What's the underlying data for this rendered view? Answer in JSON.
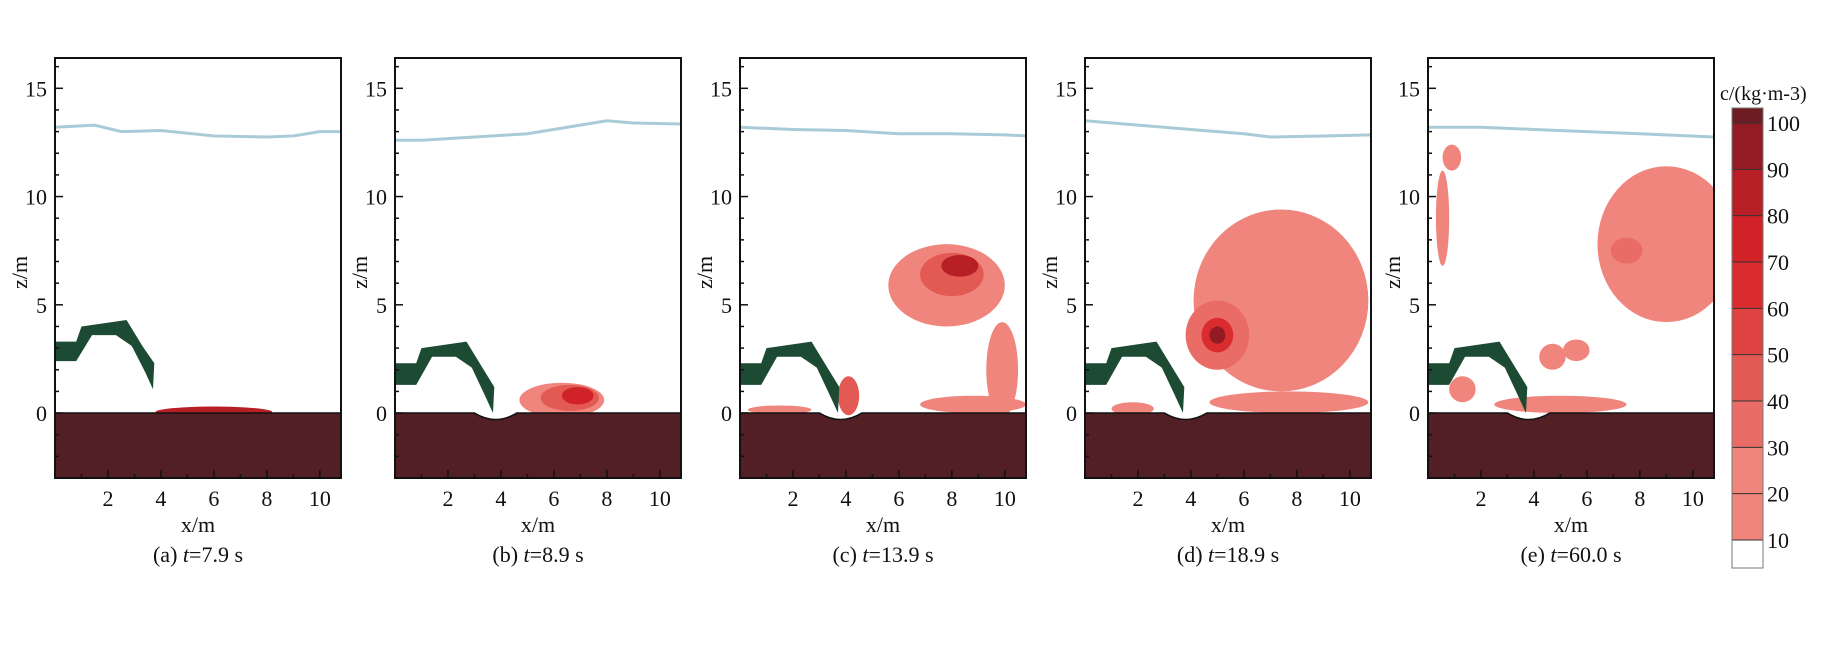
{
  "chart_data": {
    "type": "heatmap",
    "title": "",
    "xlabel": "x/m",
    "ylabel": "z/m",
    "xlim": [
      0,
      10.8
    ],
    "ylim": [
      -3,
      16.4
    ],
    "xticks": [
      2,
      4,
      6,
      8,
      10
    ],
    "yticks": [
      0,
      5,
      10,
      15
    ],
    "colorbar": {
      "label": "c/(kg·m-3)",
      "label_parts": {
        "var": "c",
        "unit": "/(kg·m",
        "exp": "-3",
        "close": ")"
      },
      "levels": [
        10,
        20,
        30,
        40,
        50,
        60,
        70,
        80,
        90,
        100
      ],
      "colors": [
        "#ffffff",
        "#ef857d",
        "#e96d66",
        "#e35a55",
        "#de4241",
        "#da2c2e",
        "#d02227",
        "#b81e25",
        "#931b23",
        "#6e1b22"
      ],
      "bed_color": "#521f25"
    },
    "structure_color": "#1c4a33",
    "surface_color": "#a9cbd8",
    "panels": [
      {
        "caption": {
          "prefix": "(a) ",
          "var": "t",
          "value": "=7.9 s"
        },
        "surface": [
          [
            0,
            13.2
          ],
          [
            1.5,
            13.3
          ],
          [
            2.5,
            13.0
          ],
          [
            4,
            13.05
          ],
          [
            6,
            12.8
          ],
          [
            8,
            12.75
          ],
          [
            9,
            12.8
          ],
          [
            10,
            13.0
          ],
          [
            10.8,
            13.0
          ]
        ],
        "structure": [
          [
            0,
            3.3
          ],
          [
            0.8,
            3.3
          ],
          [
            1.0,
            4.0
          ],
          [
            2.7,
            4.3
          ],
          [
            3.3,
            3.1
          ],
          [
            3.75,
            2.3
          ],
          [
            3.7,
            1.1
          ],
          [
            3.4,
            1.9
          ],
          [
            2.9,
            3.1
          ],
          [
            2.3,
            3.6
          ],
          [
            1.4,
            3.6
          ],
          [
            0.8,
            2.4
          ],
          [
            0,
            2.4
          ]
        ],
        "bed_dip": 0,
        "plumes": [
          [
            6,
            0.05,
            2.2,
            0.25,
            80
          ]
        ]
      },
      {
        "caption": {
          "prefix": "(b) ",
          "var": "t",
          "value": "=8.9 s"
        },
        "surface": [
          [
            0,
            12.6
          ],
          [
            1,
            12.6
          ],
          [
            3,
            12.75
          ],
          [
            5,
            12.9
          ],
          [
            6.5,
            13.2
          ],
          [
            8,
            13.5
          ],
          [
            9,
            13.4
          ],
          [
            10.8,
            13.35
          ]
        ],
        "structure": [
          [
            0,
            2.3
          ],
          [
            0.8,
            2.3
          ],
          [
            1.0,
            3.0
          ],
          [
            2.7,
            3.3
          ],
          [
            3.3,
            2.1
          ],
          [
            3.75,
            1.2
          ],
          [
            3.7,
            0.0
          ],
          [
            3.4,
            0.8
          ],
          [
            2.9,
            2.1
          ],
          [
            2.3,
            2.6
          ],
          [
            1.4,
            2.6
          ],
          [
            0.8,
            1.3
          ],
          [
            0,
            1.3
          ]
        ],
        "bed_dip": 0.3,
        "plumes": [
          [
            6.3,
            0.6,
            1.6,
            0.8,
            20
          ],
          [
            6.6,
            0.7,
            1.1,
            0.6,
            40
          ],
          [
            6.9,
            0.8,
            0.6,
            0.4,
            70
          ]
        ]
      },
      {
        "caption": {
          "prefix": "(c) ",
          "var": "t",
          "value": "=13.9 s"
        },
        "surface": [
          [
            0,
            13.2
          ],
          [
            2,
            13.1
          ],
          [
            4,
            13.05
          ],
          [
            6,
            12.9
          ],
          [
            8,
            12.9
          ],
          [
            10,
            12.85
          ],
          [
            10.8,
            12.8
          ]
        ],
        "structure": [
          [
            0,
            2.3
          ],
          [
            0.8,
            2.3
          ],
          [
            1.0,
            3.0
          ],
          [
            2.7,
            3.3
          ],
          [
            3.3,
            2.1
          ],
          [
            3.75,
            1.2
          ],
          [
            3.7,
            0.0
          ],
          [
            3.4,
            0.8
          ],
          [
            2.9,
            2.1
          ],
          [
            2.3,
            2.6
          ],
          [
            1.4,
            2.6
          ],
          [
            0.8,
            1.3
          ],
          [
            0,
            1.3
          ]
        ],
        "bed_dip": 0.3,
        "plumes": [
          [
            7.8,
            5.9,
            2.2,
            1.9,
            20
          ],
          [
            9.9,
            2.0,
            0.6,
            2.2,
            20
          ],
          [
            8.8,
            0.4,
            2.0,
            0.4,
            20
          ],
          [
            4.1,
            0.8,
            0.4,
            0.9,
            40
          ],
          [
            8.0,
            6.4,
            1.2,
            1.0,
            40
          ],
          [
            8.3,
            6.8,
            0.7,
            0.5,
            80
          ],
          [
            1.5,
            0.15,
            1.2,
            0.2,
            20
          ]
        ]
      },
      {
        "caption": {
          "prefix": "(d) ",
          "var": "t",
          "value": "=18.9 s"
        },
        "surface": [
          [
            0,
            13.5
          ],
          [
            2,
            13.3
          ],
          [
            4,
            13.1
          ],
          [
            6,
            12.9
          ],
          [
            7,
            12.75
          ],
          [
            9,
            12.8
          ],
          [
            10.8,
            12.85
          ]
        ],
        "structure": [
          [
            0,
            2.3
          ],
          [
            0.8,
            2.3
          ],
          [
            1.0,
            3.0
          ],
          [
            2.7,
            3.3
          ],
          [
            3.3,
            2.1
          ],
          [
            3.75,
            1.2
          ],
          [
            3.7,
            0.0
          ],
          [
            3.4,
            0.8
          ],
          [
            2.9,
            2.1
          ],
          [
            2.3,
            2.6
          ],
          [
            1.4,
            2.6
          ],
          [
            0.8,
            1.3
          ],
          [
            0,
            1.3
          ]
        ],
        "bed_dip": 0.3,
        "plumes": [
          [
            7.4,
            5.2,
            3.3,
            4.2,
            20
          ],
          [
            5.0,
            3.6,
            1.2,
            1.6,
            30
          ],
          [
            5.0,
            3.6,
            0.6,
            0.8,
            60
          ],
          [
            5.0,
            3.6,
            0.3,
            0.4,
            90
          ],
          [
            7.7,
            0.5,
            3.0,
            0.5,
            20
          ],
          [
            1.8,
            0.2,
            0.8,
            0.3,
            20
          ]
        ]
      },
      {
        "caption": {
          "prefix": "(e) ",
          "var": "t",
          "value": "=60.0 s"
        },
        "surface": [
          [
            0,
            13.2
          ],
          [
            2,
            13.2
          ],
          [
            4,
            13.1
          ],
          [
            6,
            13.0
          ],
          [
            8,
            12.9
          ],
          [
            10.8,
            12.75
          ]
        ],
        "structure": [
          [
            0,
            2.3
          ],
          [
            0.8,
            2.3
          ],
          [
            1.0,
            3.0
          ],
          [
            2.7,
            3.3
          ],
          [
            3.3,
            2.1
          ],
          [
            3.75,
            1.2
          ],
          [
            3.7,
            0.0
          ],
          [
            3.4,
            0.8
          ],
          [
            2.9,
            2.1
          ],
          [
            2.3,
            2.6
          ],
          [
            1.4,
            2.6
          ],
          [
            0.8,
            1.3
          ],
          [
            0,
            1.3
          ]
        ],
        "bed_dip": 0.3,
        "plumes": [
          [
            9.0,
            7.8,
            2.6,
            3.6,
            20
          ],
          [
            7.5,
            7.5,
            0.6,
            0.6,
            30
          ],
          [
            0.9,
            11.8,
            0.35,
            0.6,
            20
          ],
          [
            0.55,
            9.0,
            0.25,
            2.2,
            20
          ],
          [
            1.3,
            1.1,
            0.5,
            0.6,
            20
          ],
          [
            4.7,
            2.6,
            0.5,
            0.6,
            20
          ],
          [
            5.6,
            2.9,
            0.5,
            0.5,
            20
          ],
          [
            5.0,
            0.4,
            2.5,
            0.4,
            20
          ]
        ]
      }
    ]
  }
}
